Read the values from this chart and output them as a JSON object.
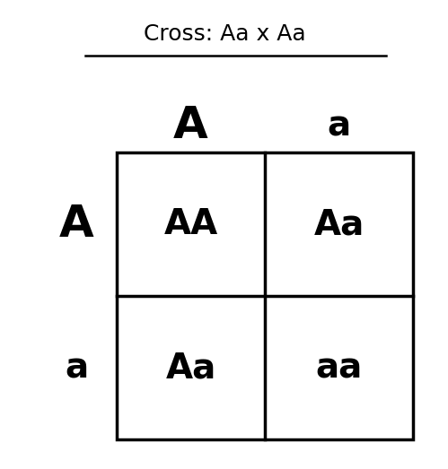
{
  "title": "Cross: Aa x Aa",
  "title_fontsize": 18,
  "col_headers": [
    "A",
    "a"
  ],
  "row_headers": [
    "A",
    "a"
  ],
  "col_header_A_fontsize": 36,
  "col_header_a_fontsize": 28,
  "row_header_A_fontsize": 36,
  "row_header_a_fontsize": 28,
  "cells": [
    [
      "AA",
      "Aa"
    ],
    [
      "Aa",
      "aa"
    ]
  ],
  "cell_fontsize": 28,
  "cell_fontweight": "bold",
  "background_color": "#ffffff",
  "grid_color": "#000000",
  "grid_linewidth": 2.5,
  "fig_width": 4.99,
  "fig_height": 5.23,
  "dpi": 100
}
